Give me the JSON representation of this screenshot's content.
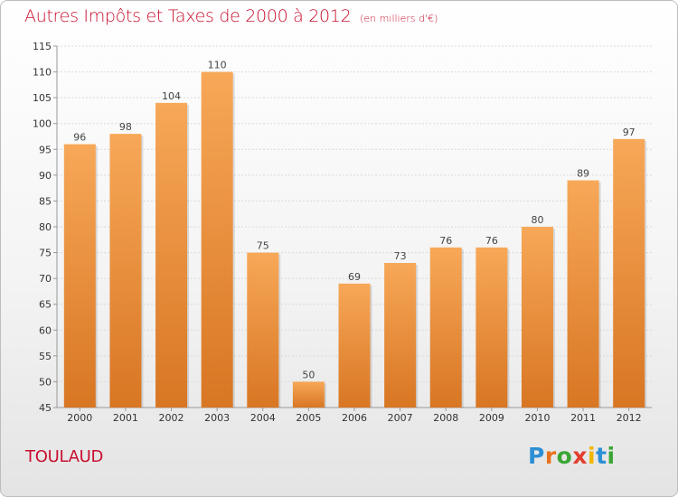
{
  "header": {
    "title": "Autres Impôts et Taxes de 2000 à 2012",
    "subtitle": "(en milliers d'€)"
  },
  "footer": {
    "place": "TOULAUD",
    "brand_letters": [
      "P",
      "r",
      "o",
      "x",
      "i",
      "t",
      "i"
    ]
  },
  "colors": {
    "title": "#c8102e",
    "bar_light": "#f7a858",
    "bar_dark": "#d87623",
    "brand": [
      "#2d8fd5",
      "#e8731c",
      "#3aa635",
      "#e23d2f",
      "#f2b600",
      "#2d8fd5",
      "#3aa635"
    ]
  },
  "chart_data": {
    "type": "bar",
    "title": "Autres Impôts et Taxes de 2000 à 2012",
    "subtitle": "(en milliers d'€)",
    "xlabel": "",
    "ylabel": "",
    "categories": [
      "2000",
      "2001",
      "2002",
      "2003",
      "2004",
      "2005",
      "2006",
      "2007",
      "2008",
      "2009",
      "2010",
      "2011",
      "2012"
    ],
    "values": [
      96,
      98,
      104,
      110,
      75,
      50,
      69,
      73,
      76,
      76,
      80,
      89,
      97
    ],
    "ylim": [
      45,
      115
    ],
    "yticks": [
      45,
      50,
      55,
      60,
      65,
      70,
      75,
      80,
      85,
      90,
      95,
      100,
      105,
      110,
      115
    ],
    "grid": true,
    "legend": "none"
  }
}
